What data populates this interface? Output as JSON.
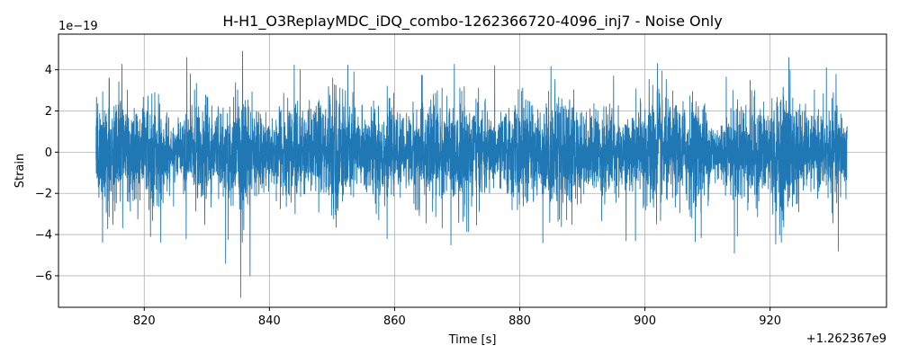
{
  "chart_data": {
    "type": "line",
    "title": "H-H1_O3ReplayMDC_iDQ_combo-1262366720-4096_inj7 - Noise Only",
    "xlabel": "Time [s]",
    "ylabel": "Strain",
    "x_offset_text": "+1.262367e9",
    "y_offset_text": "1e−19",
    "xlim": [
      806.3,
      938.6
    ],
    "ylim": [
      -7.53,
      5.73
    ],
    "x_ticks": [
      820,
      840,
      860,
      880,
      900,
      920
    ],
    "x_tick_labels": [
      "820",
      "840",
      "860",
      "880",
      "900",
      "920"
    ],
    "y_ticks": [
      -6,
      -4,
      -2,
      0,
      2,
      4
    ],
    "y_tick_labels": [
      "−6",
      "−4",
      "−2",
      "0",
      "2",
      "4"
    ],
    "grid": true,
    "series": [
      {
        "color": "#1f77b4",
        "x_range": [
          812.3,
          932.3
        ],
        "y_range": [
          -7.05,
          5.2
        ],
        "noise_std": 1.15,
        "extremes": [
          {
            "x": 835.4,
            "y": -7.05
          },
          {
            "x": 836.9,
            "y": 5.2
          },
          {
            "x": 836.9,
            "y": -6.0
          },
          {
            "x": 833.0,
            "y": -5.4
          },
          {
            "x": 835.7,
            "y": 4.9
          },
          {
            "x": 826.8,
            "y": 4.6
          },
          {
            "x": 923.0,
            "y": 4.6
          },
          {
            "x": 902.0,
            "y": 4.3
          },
          {
            "x": 914.3,
            "y": -4.9
          },
          {
            "x": 930.9,
            "y": -4.8
          },
          {
            "x": 876.0,
            "y": 4.2
          },
          {
            "x": 885.0,
            "y": 4.15
          },
          {
            "x": 844.9,
            "y": 4.0
          },
          {
            "x": 869.0,
            "y": -4.5
          },
          {
            "x": 883.7,
            "y": -4.4
          },
          {
            "x": 920.9,
            "y": -4.45
          },
          {
            "x": 821.0,
            "y": -4.1
          },
          {
            "x": 826.7,
            "y": -4.2
          },
          {
            "x": 898.5,
            "y": -4.3
          },
          {
            "x": 909.0,
            "y": -4.15
          },
          {
            "x": 897.0,
            "y": -4.3
          },
          {
            "x": 853.5,
            "y": 3.9
          },
          {
            "x": 858.8,
            "y": -4.2
          },
          {
            "x": 895.0,
            "y": 3.7
          },
          {
            "x": 913.0,
            "y": 3.65
          },
          {
            "x": 929.0,
            "y": 4.1
          }
        ]
      }
    ]
  }
}
